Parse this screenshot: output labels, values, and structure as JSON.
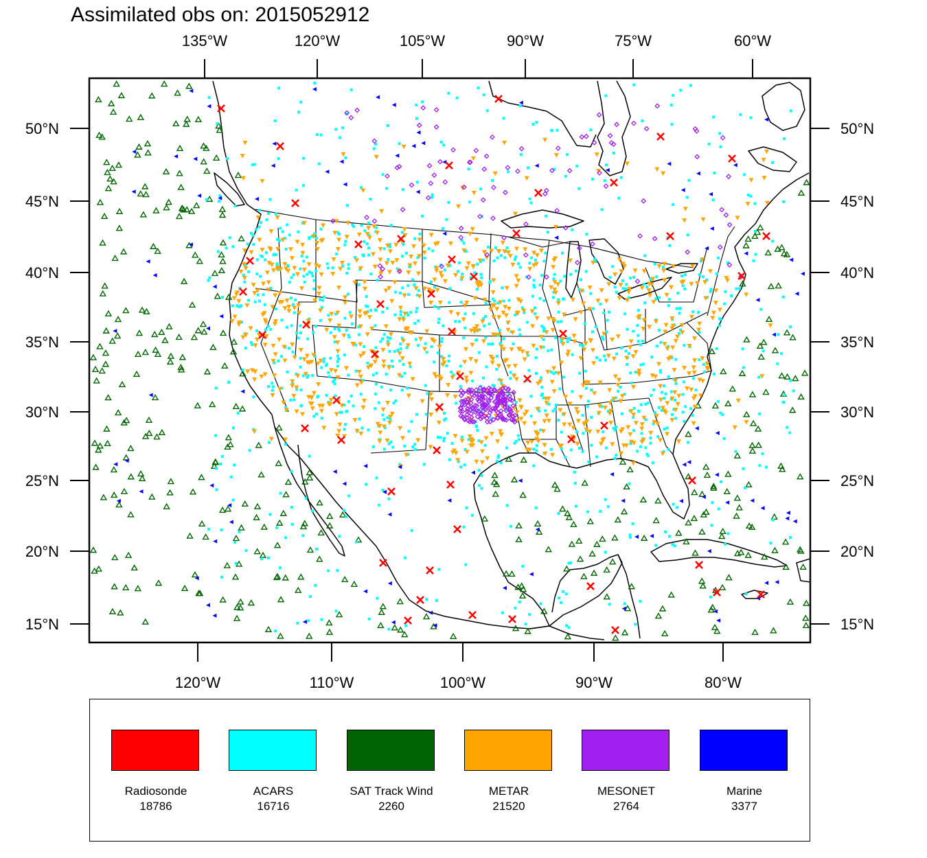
{
  "title": "Assimilated obs on: 2015052912",
  "map": {
    "top_axis_labels": [
      "135°W",
      "120°W",
      "105°W",
      "90°W",
      "75°W",
      "60°W"
    ],
    "bottom_axis_labels": [
      "120°W",
      "110°W",
      "100°W",
      "90°W",
      "80°W"
    ],
    "left_axis_labels": [
      "50°N",
      "45°N",
      "40°N",
      "35°N",
      "30°N",
      "25°N",
      "20°N",
      "15°N"
    ],
    "right_axis_labels": [
      "50°N",
      "45°N",
      "40°N",
      "35°N",
      "30°N",
      "25°N",
      "20°N",
      "15°N"
    ],
    "region": "Continental United States, Mexico, Gulf of Mexico, Caribbean and adjacent Pacific/Atlantic",
    "land_boundary_color": "#000000"
  },
  "legend": {
    "items": [
      {
        "name": "Radiosonde",
        "count": "18786",
        "color": "#ff0000",
        "marker": "x-mark-icon"
      },
      {
        "name": "ACARS",
        "count": "16716",
        "color": "#00ffff",
        "marker": "square-dot-icon"
      },
      {
        "name": "SAT Track Wind",
        "count": "2260",
        "color": "#006400",
        "marker": "triangle-up-icon"
      },
      {
        "name": "METAR",
        "count": "21520",
        "color": "#ffa500",
        "marker": "triangle-down-icon"
      },
      {
        "name": "MESONET",
        "count": "2764",
        "color": "#a020f0",
        "marker": "diamond-icon"
      },
      {
        "name": "Marine",
        "count": "3377",
        "color": "#0000ff",
        "marker": "triangle-left-icon"
      }
    ]
  }
}
